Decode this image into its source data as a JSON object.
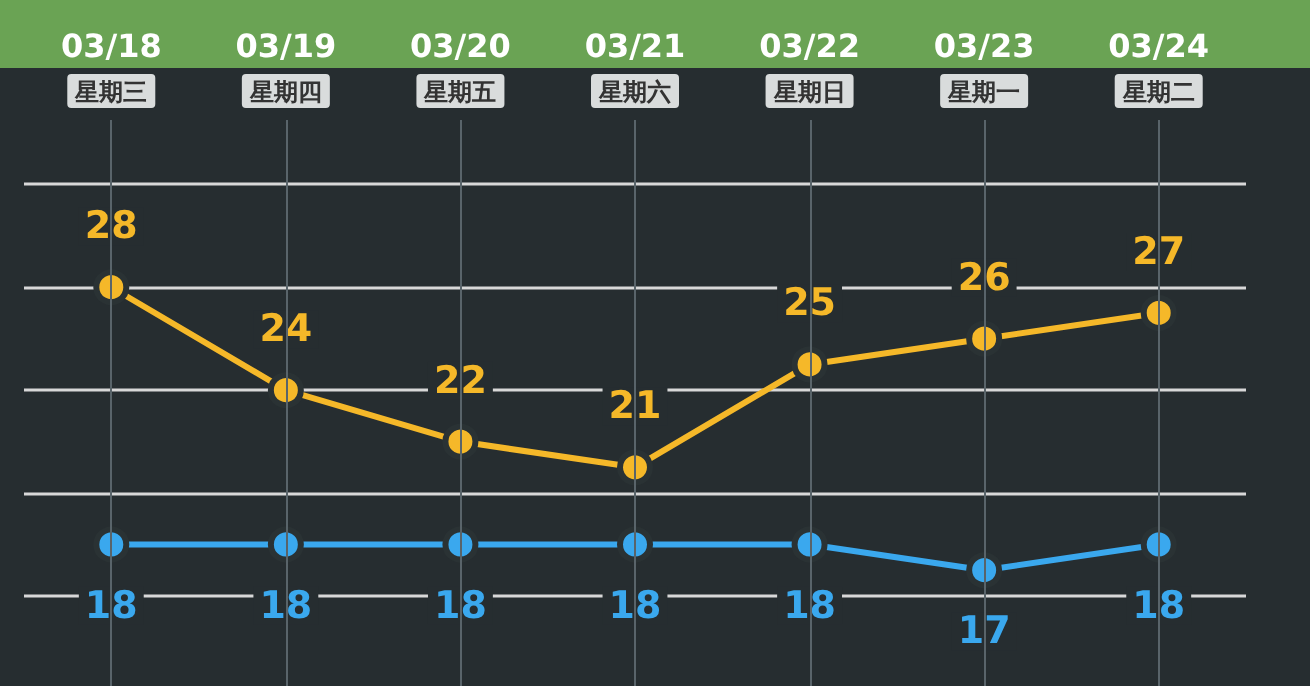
{
  "chart_data": {
    "type": "line",
    "categories": [
      "03/18\n星期三",
      "03/19\n星期四",
      "03/20\n星期五",
      "03/21\n星期六",
      "03/22\n星期日",
      "03/23\n星期一",
      "03/24\n星期二"
    ],
    "series": [
      {
        "color": "#f5b829",
        "values": [
          28,
          24,
          22,
          21,
          25,
          26,
          27
        ]
      },
      {
        "color": "#3aa8ee",
        "values": [
          18,
          18,
          18,
          18,
          18,
          17,
          18
        ]
      }
    ],
    "ylim": [
      12.5,
      34.5
    ],
    "yticks": [
      {
        "value": 16,
        "label": null
      },
      {
        "value": 20,
        "label": null
      },
      {
        "value": 24,
        "label": null
      },
      {
        "value": 28,
        "label": null
      },
      {
        "value": 32,
        "label": null
      }
    ],
    "tick_labels": "x",
    "grid": true,
    "data_labels": true,
    "marker": "circle",
    "line_style": "solid"
  }
}
